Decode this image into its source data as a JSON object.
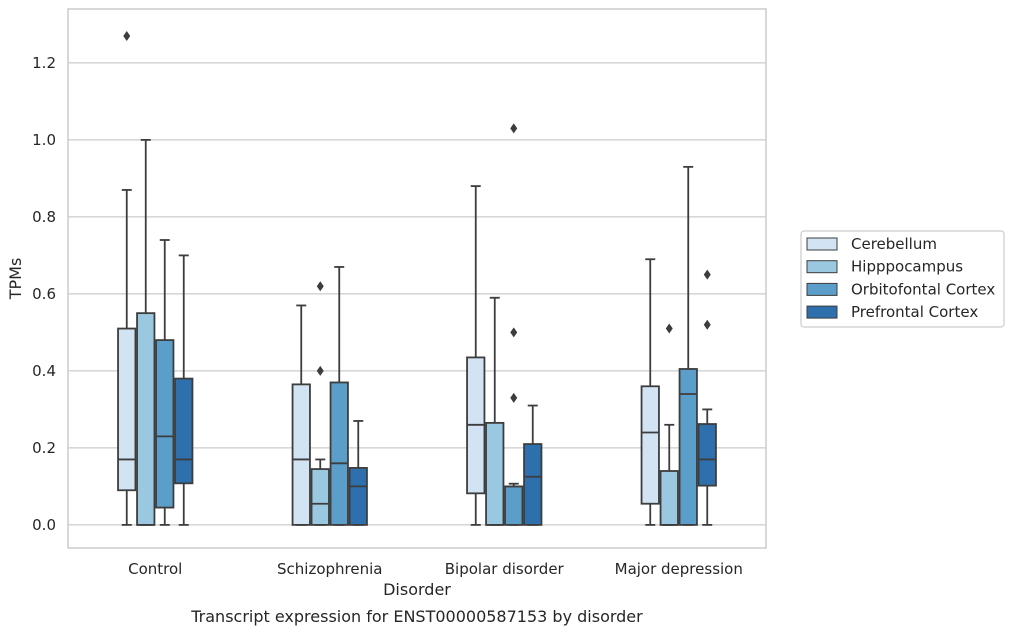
{
  "chart_data": {
    "type": "box",
    "caption": "Transcript expression for ENST00000587153 by disorder",
    "xlabel": "Disorder",
    "ylabel": "TPMs",
    "ylim": [
      -0.06,
      1.34
    ],
    "yticks": [
      "0.0",
      "0.2",
      "0.4",
      "0.6",
      "0.8",
      "1.0",
      "1.2"
    ],
    "grid": "horizontal",
    "legend_placement": "right",
    "categories": [
      "Control",
      "Schizophrenia",
      "Bipolar disorder",
      "Major depression"
    ],
    "series": [
      {
        "name": "Cerebellum",
        "color": "#d2e3f3",
        "boxes": [
          {
            "whislo": 0.0,
            "q1": 0.09,
            "med": 0.17,
            "q3": 0.51,
            "whishi": 0.87,
            "fliers": [
              1.27
            ]
          },
          {
            "whislo": 0.0,
            "q1": 0.0,
            "med": 0.17,
            "q3": 0.365,
            "whishi": 0.57,
            "fliers": []
          },
          {
            "whislo": 0.0,
            "q1": 0.082,
            "med": 0.26,
            "q3": 0.435,
            "whishi": 0.88,
            "fliers": []
          },
          {
            "whislo": 0.0,
            "q1": 0.055,
            "med": 0.24,
            "q3": 0.36,
            "whishi": 0.69,
            "fliers": []
          }
        ]
      },
      {
        "name": "Hipppocampus",
        "color": "#9ac8e0",
        "boxes": [
          {
            "whislo": 0.0,
            "q1": 0.0,
            "med": 0.0,
            "q3": 0.55,
            "whishi": 1.0,
            "fliers": []
          },
          {
            "whislo": 0.0,
            "q1": 0.0,
            "med": 0.055,
            "q3": 0.145,
            "whishi": 0.17,
            "fliers": [
              0.4,
              0.62
            ]
          },
          {
            "whislo": 0.0,
            "q1": 0.0,
            "med": 0.0,
            "q3": 0.265,
            "whishi": 0.59,
            "fliers": []
          },
          {
            "whislo": 0.0,
            "q1": 0.0,
            "med": 0.0,
            "q3": 0.14,
            "whishi": 0.26,
            "fliers": [
              0.51
            ]
          }
        ]
      },
      {
        "name": "Orbitofontal Cortex",
        "color": "#5a9ec9",
        "boxes": [
          {
            "whislo": 0.0,
            "q1": 0.045,
            "med": 0.23,
            "q3": 0.48,
            "whishi": 0.74,
            "fliers": []
          },
          {
            "whislo": 0.0,
            "q1": 0.0,
            "med": 0.16,
            "q3": 0.37,
            "whishi": 0.67,
            "fliers": []
          },
          {
            "whislo": 0.0,
            "q1": 0.0,
            "med": 0.1,
            "q3": 0.1,
            "whishi": 0.107,
            "fliers": [
              0.33,
              0.5,
              1.03
            ]
          },
          {
            "whislo": 0.0,
            "q1": 0.0,
            "med": 0.34,
            "q3": 0.405,
            "whishi": 0.93,
            "fliers": []
          }
        ]
      },
      {
        "name": "Prefrontal Cortex",
        "color": "#2e6fad",
        "boxes": [
          {
            "whislo": 0.0,
            "q1": 0.108,
            "med": 0.17,
            "q3": 0.38,
            "whishi": 0.7,
            "fliers": []
          },
          {
            "whislo": 0.0,
            "q1": 0.0,
            "med": 0.1,
            "q3": 0.148,
            "whishi": 0.27,
            "fliers": []
          },
          {
            "whislo": 0.0,
            "q1": 0.0,
            "med": 0.125,
            "q3": 0.21,
            "whishi": 0.31,
            "fliers": []
          },
          {
            "whislo": 0.0,
            "q1": 0.102,
            "med": 0.17,
            "q3": 0.262,
            "whishi": 0.3,
            "fliers": [
              0.52,
              0.65
            ]
          }
        ]
      }
    ],
    "colors": {
      "grid": "#cccccc",
      "frame": "#cccccc",
      "box_edge": "#3d3d3d",
      "text": "#262626"
    }
  }
}
